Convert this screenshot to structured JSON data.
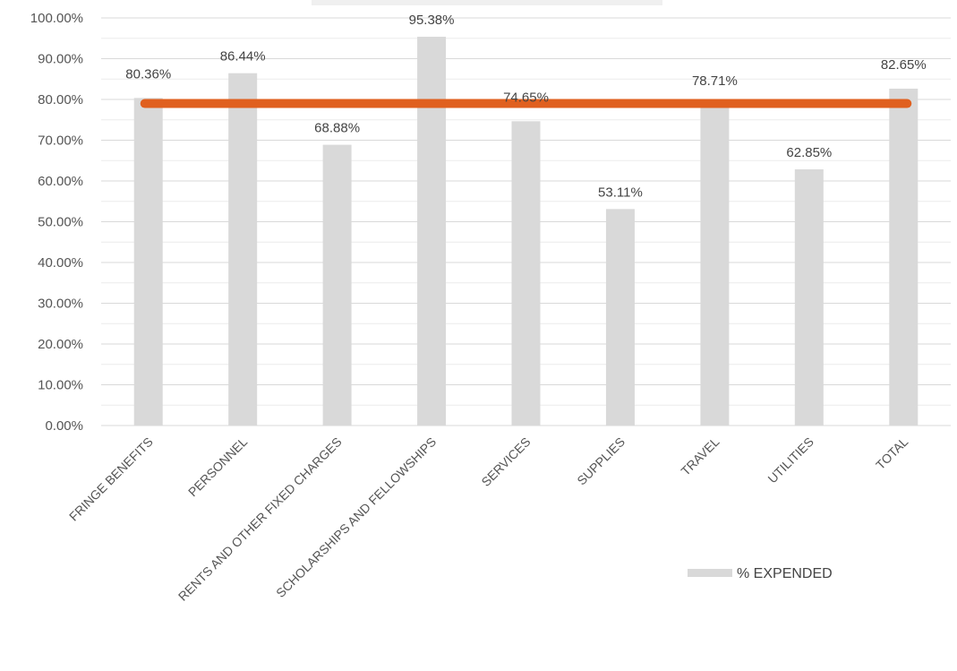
{
  "chart_data": {
    "type": "bar",
    "categories": [
      "FRINGE BENEFITS",
      "PERSONNEL",
      "RENTS AND OTHER FIXED CHARGES",
      "SCHOLARSHIPS AND FELLOWSHIPS",
      "SERVICES",
      "SUPPLIES",
      "TRAVEL",
      "UTILITIES",
      "TOTAL"
    ],
    "series": [
      {
        "name": "% EXPENDED",
        "values": [
          80.36,
          86.44,
          68.88,
          95.38,
          74.65,
          53.11,
          78.71,
          62.85,
          82.65
        ],
        "labels": [
          "80.36%",
          "86.44%",
          "68.88%",
          "95.38%",
          "74.65%",
          "53.11%",
          "78.71%",
          "62.85%",
          "82.65%"
        ],
        "color": "#d9d9d9"
      }
    ],
    "reference_line": {
      "value": 79,
      "color": "#e0601f"
    },
    "ylim": [
      0,
      100
    ],
    "y_ticks": [
      "0.00%",
      "10.00%",
      "20.00%",
      "30.00%",
      "40.00%",
      "50.00%",
      "60.00%",
      "70.00%",
      "80.00%",
      "90.00%",
      "100.00%"
    ],
    "grid": true,
    "legend_position": "bottom-right",
    "title": "",
    "xlabel": "",
    "ylabel": ""
  }
}
